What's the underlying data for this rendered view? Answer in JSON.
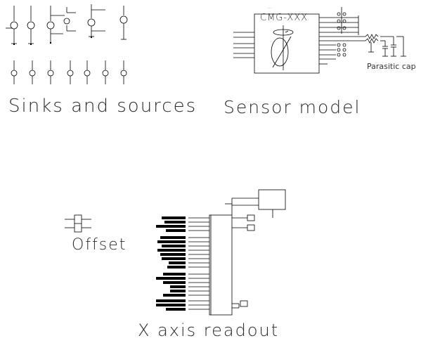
{
  "sections": {
    "sinks_sources": "Sinks and sources",
    "sensor_model": "Sensor model",
    "offset": "Offset",
    "x_axis_readout": "X axis readout"
  },
  "sensor": {
    "part_label": "CMG-XXX",
    "parasitic_caption": "Parasitic cap"
  },
  "colors": {
    "stroke": "#000000",
    "text": "#2a2a2a"
  }
}
